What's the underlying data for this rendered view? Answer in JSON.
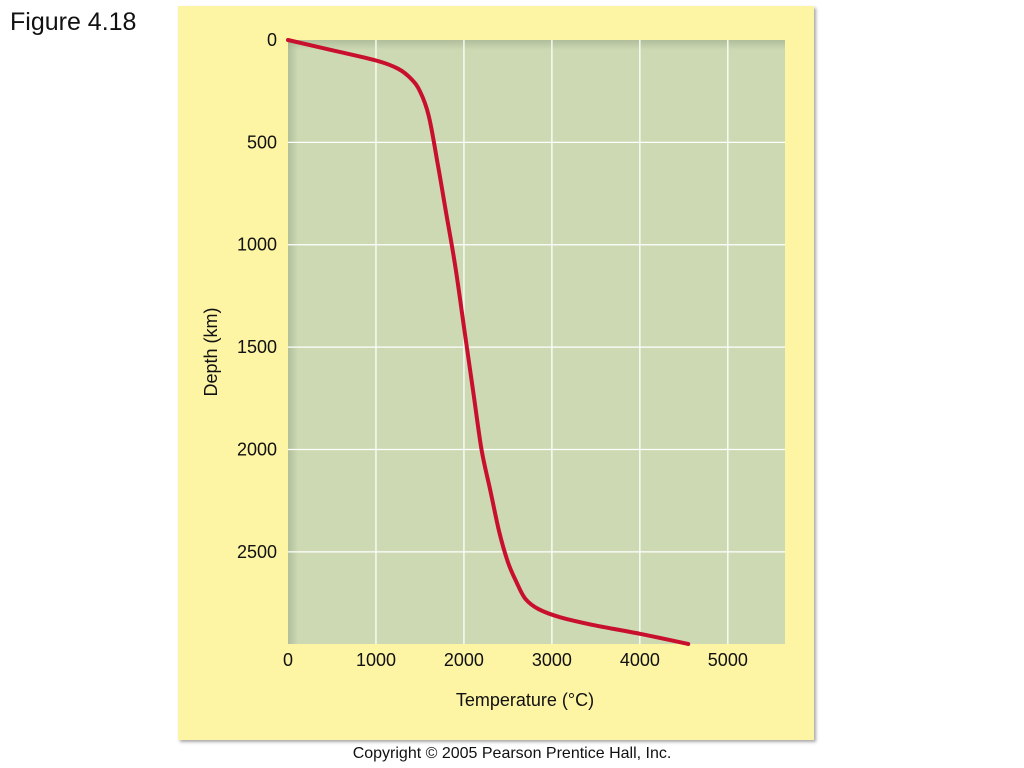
{
  "figure_label": "Figure 4.18",
  "copyright": "Copyright © 2005 Pearson Prentice Hall, Inc.",
  "colors": {
    "panel_background": "#fdf4a4",
    "plot_background": "#ccd9b3",
    "gridline": "#ffffff",
    "curve": "#c8102e"
  },
  "chart_data": {
    "type": "line",
    "title": "",
    "xlabel": "Temperature (°C)",
    "ylabel": "Depth (km)",
    "xlim": [
      0,
      5650
    ],
    "ylim": [
      2950,
      0
    ],
    "x_ticks": [
      0,
      1000,
      2000,
      3000,
      4000,
      5000
    ],
    "x_tick_labels": [
      "0",
      "1000",
      "2000",
      "3000",
      "4000",
      "5000"
    ],
    "y_ticks": [
      0,
      500,
      1000,
      1500,
      2000,
      2500
    ],
    "y_tick_labels": [
      "0",
      "500",
      "1000",
      "1500",
      "2000",
      "2500"
    ],
    "grid": true,
    "y_inverted": true,
    "series": [
      {
        "x": [
          0,
          500,
          1000,
          1250,
          1400,
          1500,
          1600,
          1700,
          1800,
          1900,
          2000,
          2100,
          2200,
          2300,
          2400,
          2500,
          2600,
          2700,
          2850,
          3100,
          3500,
          4000,
          4550
        ],
        "y": [
          0,
          50,
          100,
          140,
          190,
          250,
          370,
          600,
          850,
          1100,
          1400,
          1700,
          2000,
          2200,
          2400,
          2550,
          2650,
          2730,
          2780,
          2820,
          2860,
          2900,
          2950
        ]
      }
    ]
  }
}
